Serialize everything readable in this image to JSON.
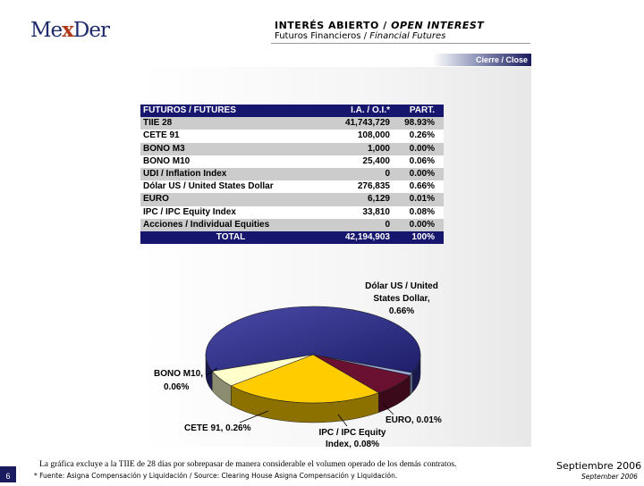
{
  "header": {
    "logo": {
      "part1": "Me",
      "part2": "x",
      "part3": "Der"
    },
    "title_es": "INTERÉS ABIERTO /",
    "title_en": "OPEN INTEREST",
    "subtitle_es": "Futuros Financieros /",
    "subtitle_en": "Financial Futures",
    "close_tag": "Cierre / Close"
  },
  "table": {
    "headers": [
      "FUTUROS / FUTURES",
      "I.A. / O.I.*",
      "PART."
    ],
    "rows": [
      {
        "name": "TIIE 28",
        "oi": "41,743,729",
        "part": "98.93%"
      },
      {
        "name": "CETE 91",
        "oi": "108,000",
        "part": "0.26%"
      },
      {
        "name": "BONO M3",
        "oi": "1,000",
        "part": "0.00%"
      },
      {
        "name": "BONO M10",
        "oi": "25,400",
        "part": "0.06%"
      },
      {
        "name": "UDI / Inflation Index",
        "oi": "0",
        "part": "0.00%"
      },
      {
        "name": "Dólar US / United States Dollar",
        "oi": "276,835",
        "part": "0.66%"
      },
      {
        "name": "EURO",
        "oi": "6,129",
        "part": "0.01%"
      },
      {
        "name": "IPC / IPC Equity Index",
        "oi": "33,810",
        "part": "0.08%"
      },
      {
        "name": "Acciones / Individual Equities",
        "oi": "0",
        "part": "0.00%"
      }
    ],
    "total": {
      "name": "TOTAL",
      "oi": "42,194,903",
      "part": "100%"
    }
  },
  "chart_data": {
    "type": "pie",
    "note": "3D pie excluding TIIE 28",
    "slices": [
      {
        "label": "Dólar US / United States Dollar, 0.66%",
        "value": 0.66,
        "color": "#2d2d8c"
      },
      {
        "label": "EURO, 0.01%",
        "value": 0.01,
        "color": "#9fb0e0"
      },
      {
        "label": "IPC / IPC Equity Index, 0.08%",
        "value": 0.08,
        "color": "#6a1030"
      },
      {
        "label": "CETE 91, 0.26%",
        "value": 0.26,
        "color": "#ffcc00"
      },
      {
        "label": "BONO M10, 0.06%",
        "value": 0.06,
        "color": "#ffffcc"
      }
    ]
  },
  "chart_labels": {
    "dolar": [
      "Dólar US / United",
      "States Dollar,",
      "0.66%"
    ],
    "euro": "EURO, 0.01%",
    "ipc": [
      "IPC / IPC Equity",
      "Index, 0.08%"
    ],
    "cete": "CETE 91, 0.26%",
    "bono": [
      "BONO M10,",
      "0.06%"
    ]
  },
  "footer": {
    "footnote": "La gráfica excluye a la TIIE de 28 días por sobrepasar de manera considerable el volumen operado de los demás contratos.",
    "source": "* Fuente: Asigna Compensación y Liquidación / Source: Clearing House Asigna Compensación y Liquidación.",
    "page": "6",
    "date_es": "Septiembre 2006",
    "date_en": "September 2006"
  }
}
